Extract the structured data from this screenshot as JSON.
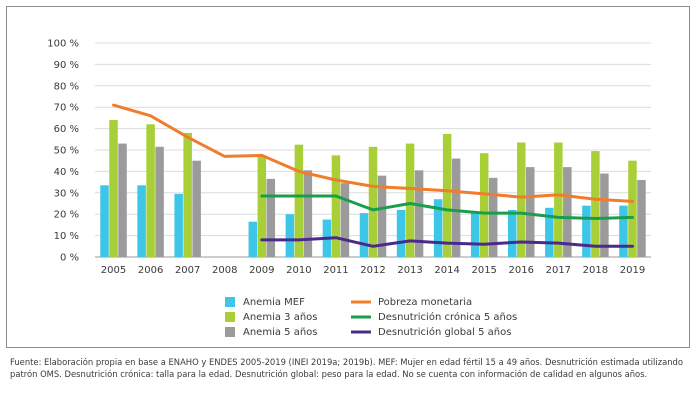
{
  "chart_data": {
    "type": "bar",
    "title": "",
    "xlabel": "",
    "ylabel": "",
    "ylim": [
      0,
      100
    ],
    "yticks": [
      "0 %",
      "10 %",
      "20 %",
      "30 %",
      "40 %",
      "50 %",
      "60 %",
      "70 %",
      "80 %",
      "90 %",
      "100 %"
    ],
    "grid": true,
    "legend_position": "bottom",
    "categories": [
      "2005",
      "2006",
      "2007",
      "2008",
      "2009",
      "2010",
      "2011",
      "2012",
      "2013",
      "2014",
      "2015",
      "2016",
      "2017",
      "2018",
      "2019"
    ],
    "bar_series": [
      {
        "name": "Anemia MEF",
        "color": "#3ec6e8",
        "values": [
          33.5,
          33.5,
          29.5,
          null,
          16.5,
          20,
          17.5,
          20.5,
          22,
          27,
          21,
          22,
          23,
          24,
          24
        ]
      },
      {
        "name": "Anemia 3 años",
        "color": "#a9cf38",
        "values": [
          64,
          62,
          58,
          null,
          47,
          52.5,
          47.5,
          51.5,
          53,
          57.5,
          48.5,
          53.5,
          53.5,
          49.5,
          45
        ]
      },
      {
        "name": "Anemia 5 años",
        "color": "#9b9b9b",
        "values": [
          53,
          51.5,
          45,
          null,
          36.5,
          40.5,
          34.5,
          38,
          40.5,
          46,
          37,
          42,
          42,
          39,
          36
        ]
      }
    ],
    "line_series": [
      {
        "name": "Pobreza monetaria",
        "color": "#f07d2c",
        "values": [
          71,
          66,
          56,
          47,
          47.5,
          40,
          36,
          33,
          32,
          31,
          29.5,
          28,
          29,
          27,
          26
        ]
      },
      {
        "name": "Desnutrición crónica 5 años",
        "color": "#1a9e4c",
        "values": [
          null,
          null,
          null,
          null,
          28.5,
          28.5,
          28.5,
          22,
          25,
          22,
          20.5,
          20.5,
          18.5,
          18,
          18.5
        ]
      },
      {
        "name": "Desnutrición global 5 años",
        "color": "#4a2a8a",
        "values": [
          null,
          null,
          null,
          null,
          8,
          8,
          9,
          5,
          7.5,
          6.5,
          6,
          7,
          6.5,
          5,
          5
        ]
      }
    ]
  },
  "legend": {
    "bars": [
      {
        "label": "Anemia MEF",
        "color": "#3ec6e8"
      },
      {
        "label": "Anemia 3 años",
        "color": "#a9cf38"
      },
      {
        "label": "Anemia 5 años",
        "color": "#9b9b9b"
      }
    ],
    "lines": [
      {
        "label": "Pobreza monetaria",
        "color": "#f07d2c"
      },
      {
        "label": "Desnutrición crónica 5 años",
        "color": "#1a9e4c"
      },
      {
        "label": "Desnutrición global 5 años",
        "color": "#4a2a8a"
      }
    ]
  },
  "source_note": "Fuente: Elaboración propia en base a ENAHO y ENDES 2005-2019 (INEI 2019a; 2019b). MEF: Mujer en edad fértil 15 a 49 años. Desnutrición estimada utilizando patrón OMS. Desnutrición crónica: talla para la edad. Desnutrición global: peso para la edad. No se cuenta con información de calidad en algunos años."
}
